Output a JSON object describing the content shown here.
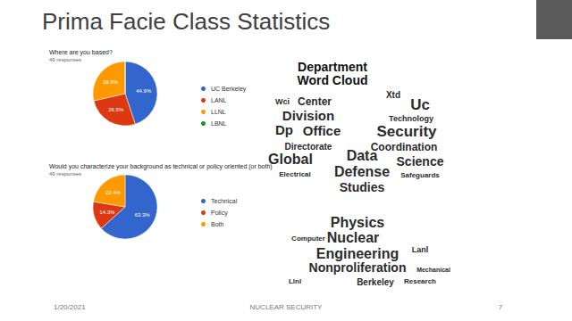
{
  "title": "Prima Facie Class Statistics",
  "chart_data": [
    {
      "type": "pie",
      "title": "Where are you based?",
      "subtitle": "49 responses",
      "categories": [
        "UC Berkeley",
        "LANL",
        "LLNL",
        "LBNL"
      ],
      "values": [
        44.9,
        26.5,
        28.6,
        0
      ],
      "value_labels": [
        "44.9%",
        "26.5%",
        "28.6%",
        null
      ],
      "colors": [
        "#3366cc",
        "#dc3912",
        "#ff9900",
        "#109618"
      ],
      "data_labels": true,
      "legend": "right"
    },
    {
      "type": "pie",
      "title": "Would you characterize your background as technical or policy oriented (or both)",
      "subtitle": "49 responses",
      "categories": [
        "Technical",
        "Policy",
        "Both"
      ],
      "values": [
        63.3,
        14.3,
        22.4
      ],
      "value_labels": [
        "63.3%",
        "14.3%",
        "22.4%"
      ],
      "colors": [
        "#3366cc",
        "#dc3912",
        "#ff9900"
      ],
      "data_labels": true,
      "legend": "right"
    }
  ],
  "word_cloud": {
    "title_lines": [
      "Department",
      "Word Cloud"
    ],
    "top_left": [
      "Wci",
      "Center",
      "Division",
      "Dp",
      "Office",
      "Directorate",
      "Global",
      "Electrical"
    ],
    "top_right": [
      "Xtd",
      "Uc",
      "Technology",
      "Security",
      "Coordination",
      "Science",
      "Safeguards"
    ],
    "center": [
      "Data",
      "Defense",
      "Studies"
    ],
    "bottom": [
      "Physics",
      "Computer",
      "Nuclear",
      "Lanl",
      "Engineering",
      "Nonproliferation",
      "Mechanical",
      "Llnl",
      "Berkeley",
      "Research"
    ]
  },
  "footer": {
    "date": "1/20/2021",
    "text": "NUCLEAR SECURITY",
    "page": "7"
  }
}
